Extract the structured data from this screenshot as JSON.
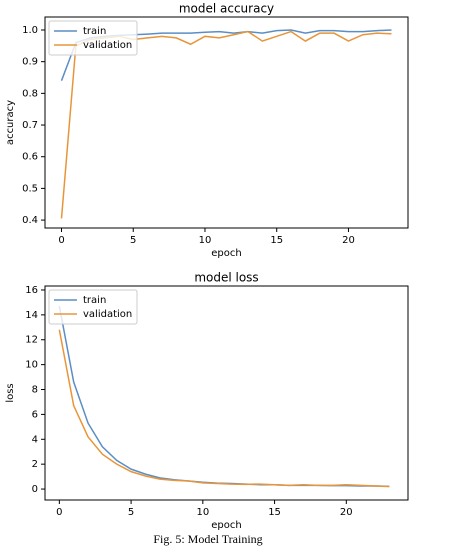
{
  "chart_data": [
    {
      "type": "line",
      "title": "model accuracy",
      "xlabel": "epoch",
      "ylabel": "accuracy",
      "x": [
        0,
        1,
        2,
        3,
        4,
        5,
        6,
        7,
        8,
        9,
        10,
        11,
        12,
        13,
        14,
        15,
        16,
        17,
        18,
        19,
        20,
        21,
        22,
        23
      ],
      "series": [
        {
          "name": "train",
          "color": "#5b8ec4",
          "values": [
            0.84,
            0.96,
            0.975,
            0.98,
            0.983,
            0.985,
            0.987,
            0.99,
            0.99,
            0.99,
            0.993,
            0.995,
            0.99,
            0.995,
            0.99,
            0.998,
            1.0,
            0.99,
            0.998,
            0.998,
            0.995,
            0.995,
            0.998,
            1.0
          ]
        },
        {
          "name": "validation",
          "color": "#e8953a",
          "values": [
            0.405,
            0.95,
            0.97,
            0.975,
            0.98,
            0.97,
            0.975,
            0.98,
            0.975,
            0.955,
            0.98,
            0.975,
            0.985,
            0.995,
            0.965,
            0.98,
            0.995,
            0.965,
            0.99,
            0.99,
            0.965,
            0.985,
            0.99,
            0.988
          ]
        }
      ],
      "xlim": [
        -1.15,
        24.15
      ],
      "ylim": [
        0.375,
        1.041
      ],
      "xticks": [
        0,
        5,
        10,
        15,
        20
      ],
      "yticks": [
        0.4,
        0.5,
        0.6,
        0.7,
        0.8,
        0.9,
        {
          "value": 1,
          "label": "1.0"
        }
      ],
      "grid": false,
      "legend": "upper-left"
    },
    {
      "type": "line",
      "title": "model loss",
      "xlabel": "epoch",
      "ylabel": "loss",
      "x": [
        0,
        1,
        2,
        3,
        4,
        5,
        6,
        7,
        8,
        9,
        10,
        11,
        12,
        13,
        14,
        15,
        16,
        17,
        18,
        19,
        20,
        21,
        22,
        23
      ],
      "series": [
        {
          "name": "train",
          "color": "#5b8ec4",
          "values": [
            14.7,
            8.6,
            5.3,
            3.4,
            2.3,
            1.6,
            1.2,
            0.9,
            0.75,
            0.65,
            0.55,
            0.48,
            0.45,
            0.4,
            0.35,
            0.35,
            0.3,
            0.3,
            0.3,
            0.28,
            0.28,
            0.25,
            0.25,
            0.22
          ]
        },
        {
          "name": "validation",
          "color": "#e8953a",
          "values": [
            12.8,
            6.7,
            4.2,
            2.8,
            2.0,
            1.4,
            1.05,
            0.8,
            0.7,
            0.65,
            0.5,
            0.45,
            0.4,
            0.38,
            0.4,
            0.35,
            0.3,
            0.35,
            0.3,
            0.3,
            0.35,
            0.3,
            0.25,
            0.2
          ]
        }
      ],
      "xlim": [
        -1.0,
        24.3
      ],
      "ylim": [
        -0.88,
        16.32
      ],
      "xticks": [
        0,
        5,
        10,
        15,
        20
      ],
      "yticks": [
        0,
        2,
        4,
        6,
        8,
        10,
        12,
        14,
        16
      ],
      "grid": false,
      "legend": "upper-left"
    }
  ],
  "caption": "Fig. 5: Model Training"
}
